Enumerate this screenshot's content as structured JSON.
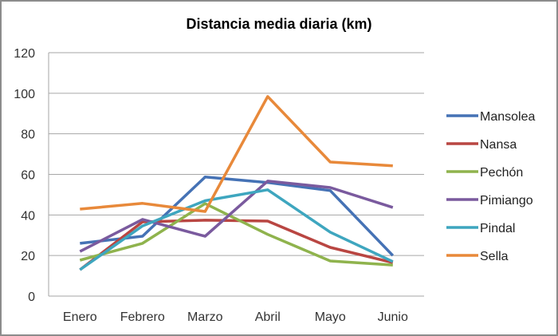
{
  "chart_data": {
    "type": "line",
    "title": "Distancia media diaria (km)",
    "xlabel": "",
    "ylabel": "",
    "categories": [
      "Enero",
      "Febrero",
      "Marzo",
      "Abril",
      "Mayo",
      "Junio"
    ],
    "ylim": [
      0,
      120
    ],
    "yticks": [
      0,
      20,
      40,
      60,
      80,
      100,
      120
    ],
    "grid": true,
    "legend_position": "right",
    "series": [
      {
        "name": "Mansolea",
        "color": "#4572b5",
        "values": [
          26,
          29.5,
          58.7,
          56,
          52,
          20
        ]
      },
      {
        "name": "Nansa",
        "color": "#b94642",
        "values": [
          13,
          36.6,
          37.4,
          37,
          24,
          16.5
        ]
      },
      {
        "name": "Pechón",
        "color": "#8fb34d",
        "values": [
          17.7,
          26,
          45.6,
          30.4,
          17.3,
          15.3
        ]
      },
      {
        "name": "Pimiango",
        "color": "#7a5a9e",
        "values": [
          22,
          37.8,
          29.5,
          56.7,
          53.5,
          43.7
        ]
      },
      {
        "name": "Pindal",
        "color": "#3ea6bf",
        "values": [
          13,
          34.6,
          47,
          52.4,
          31.5,
          17
        ]
      },
      {
        "name": "Sella",
        "color": "#e8893a",
        "values": [
          42.9,
          45.7,
          41.7,
          98.4,
          66.1,
          64.2
        ]
      }
    ]
  }
}
